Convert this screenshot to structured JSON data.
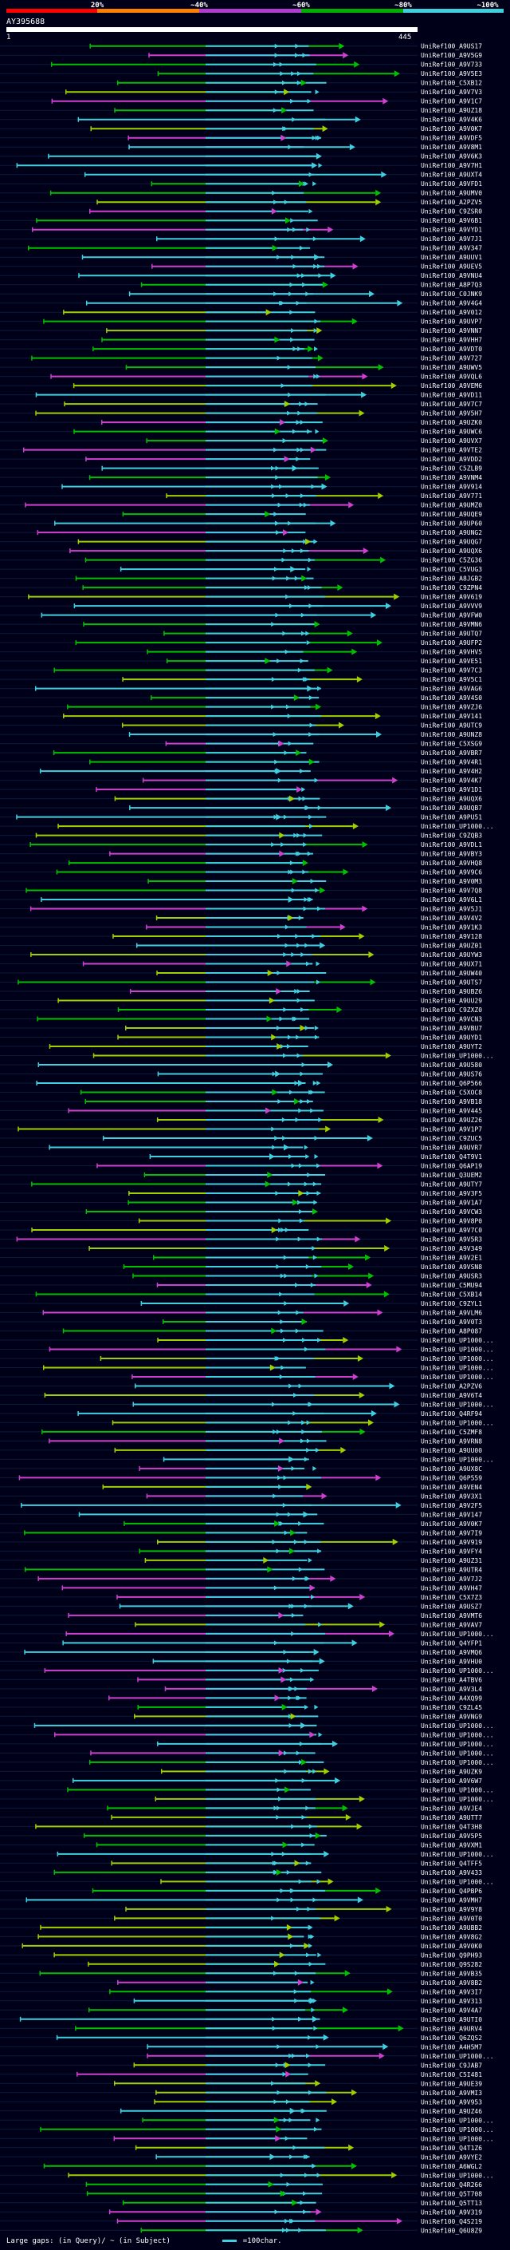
{
  "header": {
    "scale_labels": [
      "20%",
      "~40%",
      "~60%",
      "~80%",
      "~100%"
    ],
    "scale_colors": [
      "#ff0000",
      "#ff7f00",
      "#b03cd0",
      "#00b000",
      "#3fd0e0"
    ],
    "query_name": "AY395688",
    "ruler_start": "1",
    "ruler_end": "445"
  },
  "footer": {
    "gap_text": "Large gaps:",
    "gap_query": "(in Query)/",
    "gap_subject": "~ (in Subject)",
    "scale_text": "=100char."
  },
  "chart_data": {
    "type": "alignment",
    "query_length": 445,
    "hits": [
      {
        "name": "UniRef100_A9US17"
      },
      {
        "name": "UniRef100_A9V5G9"
      },
      {
        "name": "UniRef100_A9V733"
      },
      {
        "name": "UniRef100_A9V5E3"
      },
      {
        "name": "UniRef100_C5XB12"
      },
      {
        "name": "UniRef100_A9V7V3"
      },
      {
        "name": "UniRef100_A9V1C7"
      },
      {
        "name": "UniRef100_A9UZ18"
      },
      {
        "name": "UniRef100_A9V4K6"
      },
      {
        "name": "UniRef100_A9V0K7"
      },
      {
        "name": "UniRef100_A9VDF5"
      },
      {
        "name": "UniRef100_A9V8M1"
      },
      {
        "name": "UniRef100_A9V6K3"
      },
      {
        "name": "UniRef100_A9V7H1"
      },
      {
        "name": "UniRef100_A9UXT4"
      },
      {
        "name": "UniRef100_A9VFD1"
      },
      {
        "name": "UniRef100_A9UMV0"
      },
      {
        "name": "UniRef100_A2PZV5"
      },
      {
        "name": "UniRef100_C9ZSR0"
      },
      {
        "name": "UniRef100_A9V6B1"
      },
      {
        "name": "UniRef100_A9VYD1"
      },
      {
        "name": "UniRef100_A9V7J1"
      },
      {
        "name": "UniRef100_A9V347"
      },
      {
        "name": "UniRef100_A9UUV1"
      },
      {
        "name": "UniRef100_A9UEV5"
      },
      {
        "name": "UniRef100_A9VNU4"
      },
      {
        "name": "UniRef100_A8P7Q3"
      },
      {
        "name": "UniRef100_C0JNK9"
      },
      {
        "name": "UniRef100_A9V4G4"
      },
      {
        "name": "UniRef100_A9V012"
      },
      {
        "name": "UniRef100_A9UVP7"
      },
      {
        "name": "UniRef100_A9VNN7"
      },
      {
        "name": "UniRef100_A9VHH7"
      },
      {
        "name": "UniRef100_A9VDT0"
      },
      {
        "name": "UniRef100_A9V727"
      },
      {
        "name": "UniRef100_A9UWV5"
      },
      {
        "name": "UniRef100_A9VQL6"
      },
      {
        "name": "UniRef100_A9VEM6"
      },
      {
        "name": "UniRef100_A9VD11"
      },
      {
        "name": "UniRef100_A9V7C7"
      },
      {
        "name": "UniRef100_A9V5H7"
      },
      {
        "name": "UniRef100_A9UZK0"
      },
      {
        "name": "UniRef100_A9UWC6"
      },
      {
        "name": "UniRef100_A9UVX7"
      },
      {
        "name": "UniRef100_A9VTE2"
      },
      {
        "name": "UniRef100_A9VDD2"
      },
      {
        "name": "UniRef100_C5ZLB9"
      },
      {
        "name": "UniRef100_A9VNM4"
      },
      {
        "name": "UniRef100_A9V914"
      },
      {
        "name": "UniRef100_A9V771"
      },
      {
        "name": "UniRef100_A9UMZ0"
      },
      {
        "name": "UniRef100_A9UQE9"
      },
      {
        "name": "UniRef100_A9UP60"
      },
      {
        "name": "UniRef100_A9UNG2"
      },
      {
        "name": "UniRef100_A9UQG7"
      },
      {
        "name": "UniRef100_A9UQX6"
      },
      {
        "name": "UniRef100_C5ZG36"
      },
      {
        "name": "UniRef100_C5VUG3"
      },
      {
        "name": "UniRef100_A8JGB2"
      },
      {
        "name": "UniRef100_C9ZPN4"
      },
      {
        "name": "UniRef100_A9V619"
      },
      {
        "name": "UniRef100_A9VVV9"
      },
      {
        "name": "UniRef100_A9VFW0"
      },
      {
        "name": "UniRef100_A9VMN6"
      },
      {
        "name": "UniRef100_A9UTQ7"
      },
      {
        "name": "UniRef100_A9UFP2"
      },
      {
        "name": "UniRef100_A9VHV5"
      },
      {
        "name": "UniRef100_A9VE51"
      },
      {
        "name": "UniRef100_A9V7C3"
      },
      {
        "name": "UniRef100_A9V5C1"
      },
      {
        "name": "UniRef100_A9VAG6"
      },
      {
        "name": "UniRef100_A9V4S0"
      },
      {
        "name": "UniRef100_A9VZJ6"
      },
      {
        "name": "UniRef100_A9V141"
      },
      {
        "name": "UniRef100_A9UTC9"
      },
      {
        "name": "UniRef100_A9UNZ8"
      },
      {
        "name": "UniRef100_C5XSG9"
      },
      {
        "name": "UniRef100_A9VBR7"
      },
      {
        "name": "UniRef100_A9V4R1"
      },
      {
        "name": "UniRef100_A9V4H2"
      },
      {
        "name": "UniRef100_A9V4K7"
      },
      {
        "name": "UniRef100_A9V1D1"
      },
      {
        "name": "UniRef100_A9UQX6"
      },
      {
        "name": "UniRef100_A9UQB7"
      },
      {
        "name": "UniRef100_A9PU51"
      },
      {
        "name": "UniRef100_UP1000..."
      },
      {
        "name": "UniRef100_C9ZQB3"
      },
      {
        "name": "UniRef100_A9VDL1"
      },
      {
        "name": "UniRef100_A9VBY3"
      },
      {
        "name": "UniRef100_A9VHQ8"
      },
      {
        "name": "UniRef100_A9V9C6"
      },
      {
        "name": "UniRef100_A9V0M3"
      },
      {
        "name": "UniRef100_A9V7Q8"
      },
      {
        "name": "UniRef100_A9V6L1"
      },
      {
        "name": "UniRef100_A9V5J1"
      },
      {
        "name": "UniRef100_A9V4V2"
      },
      {
        "name": "UniRef100_A9V1K3"
      },
      {
        "name": "UniRef100_A9V128"
      },
      {
        "name": "UniRef100_A9UZ01"
      },
      {
        "name": "UniRef100_A9UYW3"
      },
      {
        "name": "UniRef100_A9UX71"
      },
      {
        "name": "UniRef100_A9UW40"
      },
      {
        "name": "UniRef100_A9UTS7"
      },
      {
        "name": "UniRef100_A9UBZ6"
      },
      {
        "name": "UniRef100_A9UU29"
      },
      {
        "name": "UniRef100_C9ZXZ0"
      },
      {
        "name": "UniRef100_A9VCN3"
      },
      {
        "name": "UniRef100_A9VBU7"
      },
      {
        "name": "UniRef100_A9UYD1"
      },
      {
        "name": "UniRef100_A9UYT2"
      },
      {
        "name": "UniRef100_UP1000..."
      },
      {
        "name": "UniRef100_A9U580"
      },
      {
        "name": "UniRef100_A9US76"
      },
      {
        "name": "UniRef100_Q6P566"
      },
      {
        "name": "UniRef100_C5XOC8"
      },
      {
        "name": "UniRef100_A9VB18"
      },
      {
        "name": "UniRef100_A9V445"
      },
      {
        "name": "UniRef100_A9UZ26"
      },
      {
        "name": "UniRef100_A9V1P7"
      },
      {
        "name": "UniRef100_C9ZUC5"
      },
      {
        "name": "UniRef100_A9UVR7"
      },
      {
        "name": "UniRef100_Q4T9V1"
      },
      {
        "name": "UniRef100_Q6AP19"
      },
      {
        "name": "UniRef100_Q3UEM2"
      },
      {
        "name": "UniRef100_A9UTY7"
      },
      {
        "name": "UniRef100_A9V3F5"
      },
      {
        "name": "UniRef100_A9V1A7"
      },
      {
        "name": "UniRef100_A9VCW3"
      },
      {
        "name": "UniRef100_A9V8P0"
      },
      {
        "name": "UniRef100_A9V7C0"
      },
      {
        "name": "UniRef100_A9V5R3"
      },
      {
        "name": "UniRef100_A9V349"
      },
      {
        "name": "UniRef100_A9V2E1"
      },
      {
        "name": "UniRef100_A9VSN8"
      },
      {
        "name": "UniRef100_A9USR3"
      },
      {
        "name": "UniRef100_C5MU94"
      },
      {
        "name": "UniRef100_C5XB14"
      },
      {
        "name": "UniRef100_C9ZYL1"
      },
      {
        "name": "UniRef100_A9VLM6"
      },
      {
        "name": "UniRef100_A9V0T3"
      },
      {
        "name": "UniRef100_A8P087"
      },
      {
        "name": "UniRef100_UP1000..."
      },
      {
        "name": "UniRef100_UP1000..."
      },
      {
        "name": "UniRef100_UP1000..."
      },
      {
        "name": "UniRef100_UP1000..."
      },
      {
        "name": "UniRef100_UP1000..."
      },
      {
        "name": "UniRef100_A2PZV6"
      },
      {
        "name": "UniRef100_A9V6T4"
      },
      {
        "name": "UniRef100_UP1000..."
      },
      {
        "name": "UniRef100_Q4RF94"
      },
      {
        "name": "UniRef100_UP1000..."
      },
      {
        "name": "UniRef100_C5ZMF8"
      },
      {
        "name": "UniRef100_A9VRN8"
      },
      {
        "name": "UniRef100_A9UU00"
      },
      {
        "name": "UniRef100_UP1000..."
      },
      {
        "name": "UniRef100_A9UX8C"
      },
      {
        "name": "UniRef100_Q6P559"
      },
      {
        "name": "UniRef100_A9VEN4"
      },
      {
        "name": "UniRef100_A9V3X1"
      },
      {
        "name": "UniRef100_A9V2F5"
      },
      {
        "name": "UniRef100_A9V147"
      },
      {
        "name": "UniRef100_A9V0K7"
      },
      {
        "name": "UniRef100_A9V7I9"
      },
      {
        "name": "UniRef100_A9V919"
      },
      {
        "name": "UniRef100_A9VFY4"
      },
      {
        "name": "UniRef100_A9UZ31"
      },
      {
        "name": "UniRef100_A9UTR4"
      },
      {
        "name": "UniRef100_A9V7J2"
      },
      {
        "name": "UniRef100_A9VH47"
      },
      {
        "name": "UniRef100_C5X7Z3"
      },
      {
        "name": "UniRef100_A9USZ7"
      },
      {
        "name": "UniRef100_A9VMT6"
      },
      {
        "name": "UniRef100_A9VAV7"
      },
      {
        "name": "UniRef100_UP1000..."
      },
      {
        "name": "UniRef100_Q4YFP1"
      },
      {
        "name": "UniRef100_A9VMQ6"
      },
      {
        "name": "UniRef100_A9VHU0"
      },
      {
        "name": "UniRef100_UP1000..."
      },
      {
        "name": "UniRef100_A4TBV6"
      },
      {
        "name": "UniRef100_A9V3L4"
      },
      {
        "name": "UniRef100_A4XQ99"
      },
      {
        "name": "UniRef100_C9ZL45"
      },
      {
        "name": "UniRef100_A9VNG9"
      },
      {
        "name": "UniRef100_UP1000..."
      },
      {
        "name": "UniRef100_UP1000..."
      },
      {
        "name": "UniRef100_UP1000..."
      },
      {
        "name": "UniRef100_UP1000..."
      },
      {
        "name": "UniRef100_UP1000..."
      },
      {
        "name": "UniRef100_A9UZK9"
      },
      {
        "name": "UniRef100_A9V6W7"
      },
      {
        "name": "UniRef100_UP1000..."
      },
      {
        "name": "UniRef100_UP1000..."
      },
      {
        "name": "UniRef100_A9VJE4"
      },
      {
        "name": "UniRef100_A9UTT7"
      },
      {
        "name": "UniRef100_Q4T3H8"
      },
      {
        "name": "UniRef100_A9V5P5"
      },
      {
        "name": "UniRef100_A9VXM1"
      },
      {
        "name": "UniRef100_UP1000..."
      },
      {
        "name": "UniRef100_Q4TFF5"
      },
      {
        "name": "UniRef100_A9V433"
      },
      {
        "name": "UniRef100_UP1000..."
      },
      {
        "name": "UniRef100_Q4PBP6"
      },
      {
        "name": "UniRef100_A9VMH7"
      },
      {
        "name": "UniRef100_A9V9Y8"
      },
      {
        "name": "UniRef100_A9V0T0"
      },
      {
        "name": "UniRef100_A9UBB2"
      },
      {
        "name": "UniRef100_A9V8G2"
      },
      {
        "name": "UniRef100_A9V0K0"
      },
      {
        "name": "UniRef100_Q9PH93"
      },
      {
        "name": "UniRef100_Q9S282"
      },
      {
        "name": "UniRef100_A9VB35"
      },
      {
        "name": "UniRef100_A9V8B2"
      },
      {
        "name": "UniRef100_A9V3I7"
      },
      {
        "name": "UniRef100_A9V313"
      },
      {
        "name": "UniRef100_A9V4A7"
      },
      {
        "name": "UniRef100_A9UTI0"
      },
      {
        "name": "UniRef100_A9URV4"
      },
      {
        "name": "UniRef100_Q6ZQS2"
      },
      {
        "name": "UniRef100_A4H5M7"
      },
      {
        "name": "UniRef100_UP1000..."
      },
      {
        "name": "UniRef100_C9JAB7"
      },
      {
        "name": "UniRef100_C5I481"
      },
      {
        "name": "UniRef100_A9UE39"
      },
      {
        "name": "UniRef100_A9VMI3"
      },
      {
        "name": "UniRef100_A9V953"
      },
      {
        "name": "UniRef100_A9UZ46"
      },
      {
        "name": "UniRef100_UP1000..."
      },
      {
        "name": "UniRef100_UP1000..."
      },
      {
        "name": "UniRef100_UP1000..."
      },
      {
        "name": "UniRef100_Q4T1Z6"
      },
      {
        "name": "UniRef100_A9VYE2"
      },
      {
        "name": "UniRef100_A6WGL2"
      },
      {
        "name": "UniRef100_UP1000..."
      },
      {
        "name": "UniRef100_Q4R266"
      },
      {
        "name": "UniRef100_Q5T708"
      },
      {
        "name": "UniRef100_Q5TT13"
      },
      {
        "name": "UniRef100_A9V319"
      },
      {
        "name": "UniRef100_Q4S219"
      },
      {
        "name": "UniRef100_Q6U8Z9"
      }
    ]
  }
}
